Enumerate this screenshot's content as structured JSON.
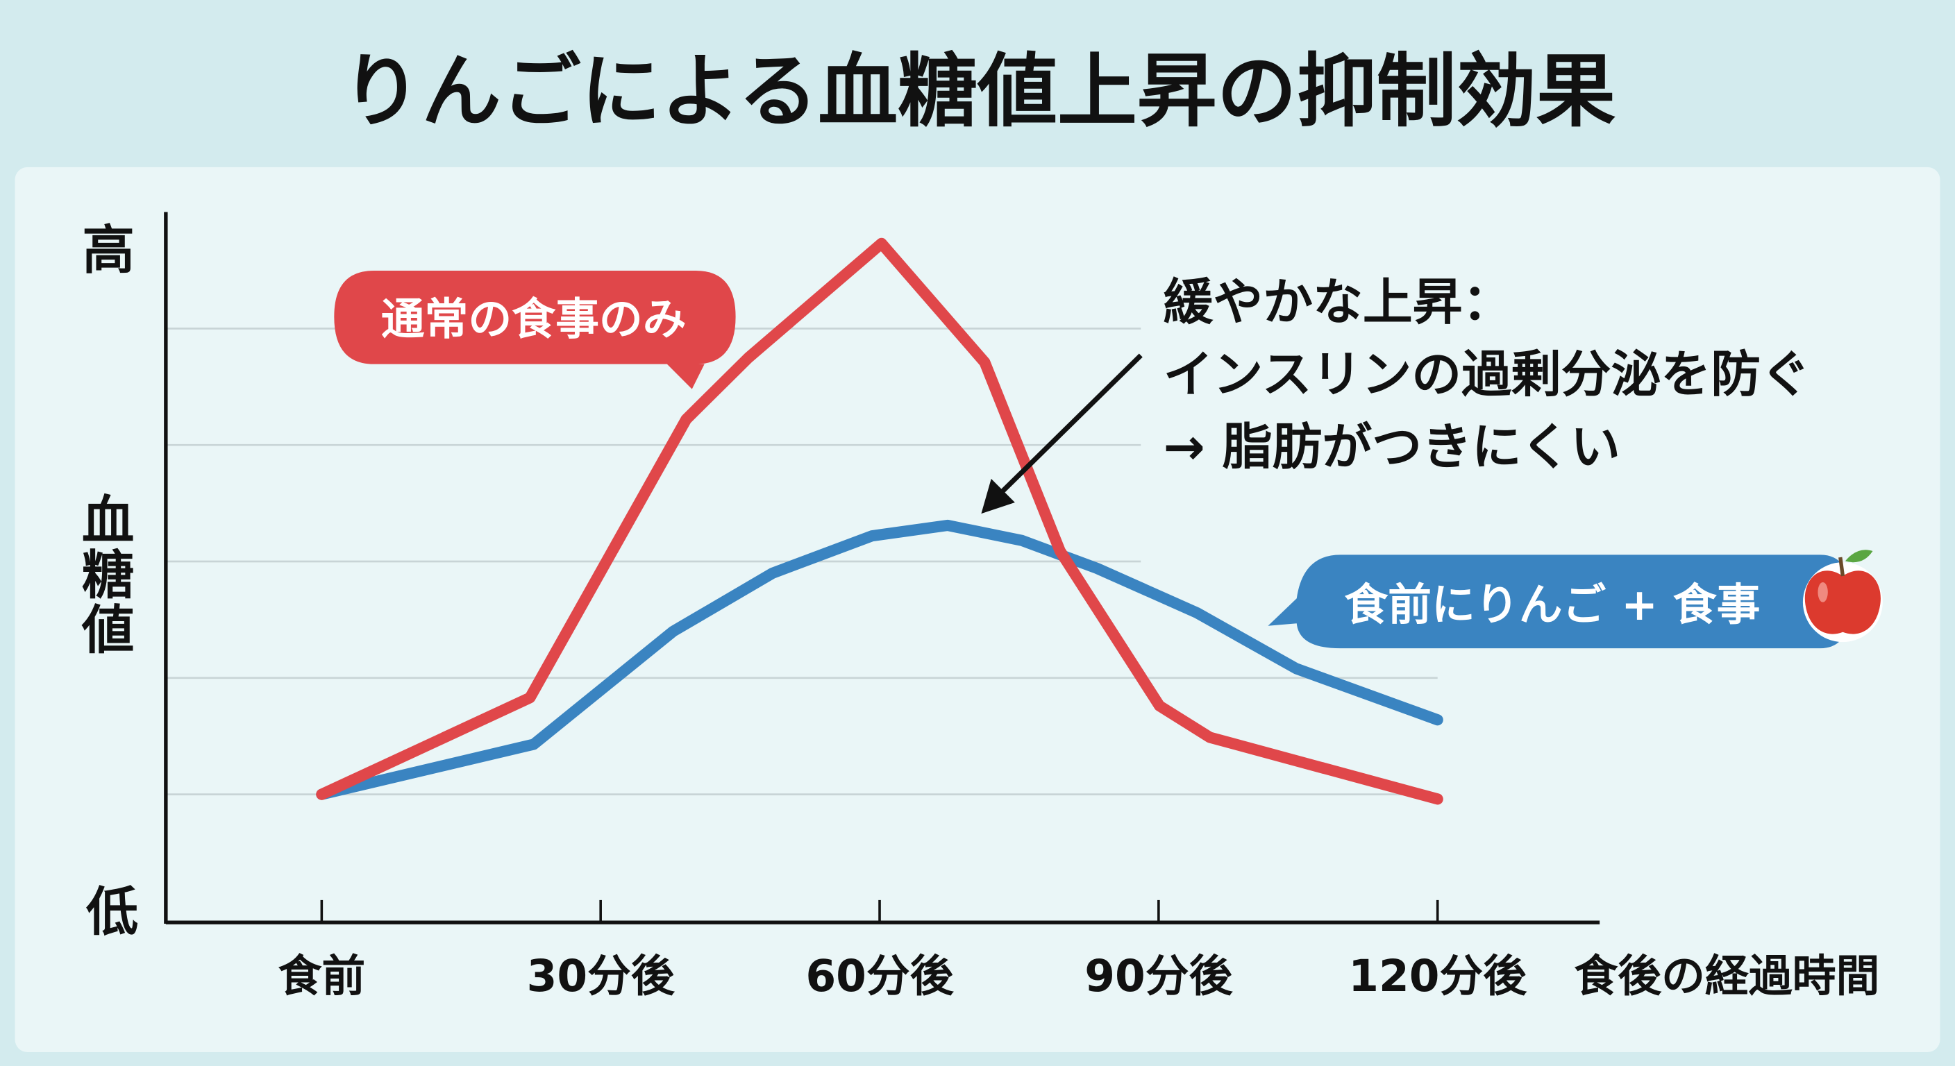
{
  "chart_data": {
    "type": "line",
    "title": "りんごによる血糖値上昇の抑制効果",
    "xlabel": "食後の経過時間",
    "ylabel": "血糖値",
    "y_tick_labels": {
      "high": "高",
      "low": "低"
    },
    "x_ticks": [
      0,
      30,
      60,
      90,
      120
    ],
    "x_tick_labels": [
      "食前",
      "30分後",
      "60分後",
      "90分後",
      "120分後"
    ],
    "xlim": [
      0,
      120
    ],
    "ylim": [
      -0.1,
      6
    ],
    "grid": true,
    "gridlines_y": [
      1,
      2,
      3,
      4,
      5
    ],
    "series": [
      {
        "name": "通常の食事のみ",
        "color": "#e0474a",
        "x": [
          0,
          22.4,
          39.2,
          45.9,
          60.2,
          71.3,
          79.4,
          90.1,
          95.5,
          120
        ],
        "y": [
          1,
          1.83,
          4.22,
          4.75,
          5.73,
          4.71,
          3.09,
          1.76,
          1.49,
          0.96
        ]
      },
      {
        "name": "食前にりんご + 食事",
        "color": "#3a84c1",
        "x": [
          0,
          22.8,
          37.8,
          48.5,
          59.2,
          67.3,
          75.3,
          83.4,
          94.1,
          104.8,
          120
        ],
        "y": [
          1,
          1.43,
          2.4,
          2.9,
          3.22,
          3.31,
          3.18,
          2.94,
          2.56,
          2.08,
          1.64
        ]
      }
    ],
    "annotation": {
      "lines": [
        "緩やかな上昇：",
        "インスリンの過剰分泌を防ぐ",
        "→ 脂肪がつきにくい"
      ],
      "arrow_target_series": "食前にりんご + 食事"
    },
    "icons": {
      "apple": "apple-icon"
    }
  }
}
